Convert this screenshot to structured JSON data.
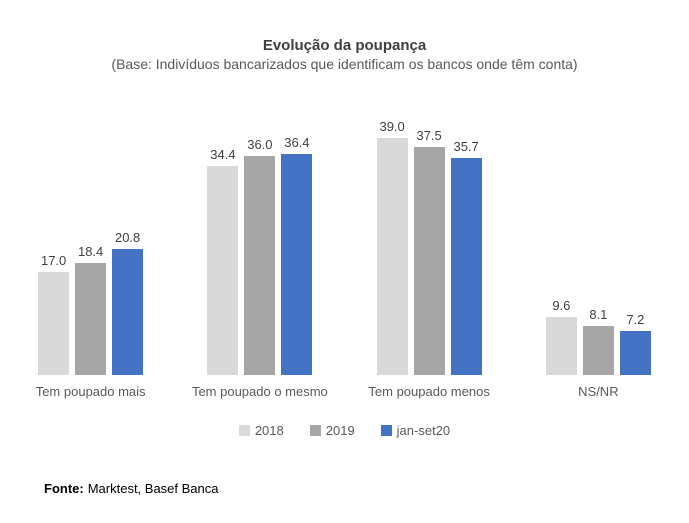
{
  "title": "Evolução da poupança",
  "subtitle": "(Base: Indivíduos bancarizados que identificam os bancos onde têm conta)",
  "footer": {
    "label": "Fonte:",
    "text": "Marktest, Basef Banca"
  },
  "chart_data": {
    "type": "bar",
    "categories": [
      "Tem poupado mais",
      "Tem poupado o mesmo",
      "Tem poupado menos",
      "NS/NR"
    ],
    "series": [
      {
        "name": "2018",
        "color": "#d9d9d9",
        "values": [
          17.0,
          34.4,
          39.0,
          9.6
        ]
      },
      {
        "name": "2019",
        "color": "#a6a6a6",
        "values": [
          18.4,
          36.0,
          37.5,
          8.1
        ]
      },
      {
        "name": "jan-set20",
        "color": "#4472c4",
        "values": [
          20.8,
          36.4,
          35.7,
          7.2
        ]
      }
    ],
    "title": "Evolução da poupança",
    "subtitle": "(Base: Indivíduos bancarizados que identificam os bancos onde têm conta)",
    "xlabel": "",
    "ylabel": "",
    "ylim": [
      0,
      45
    ],
    "grid": false,
    "axis_lines": false,
    "data_labels": true,
    "data_label_decimals": 1,
    "legend_position": "bottom",
    "source_note": "Fonte: Marktest, Basef Banca"
  }
}
